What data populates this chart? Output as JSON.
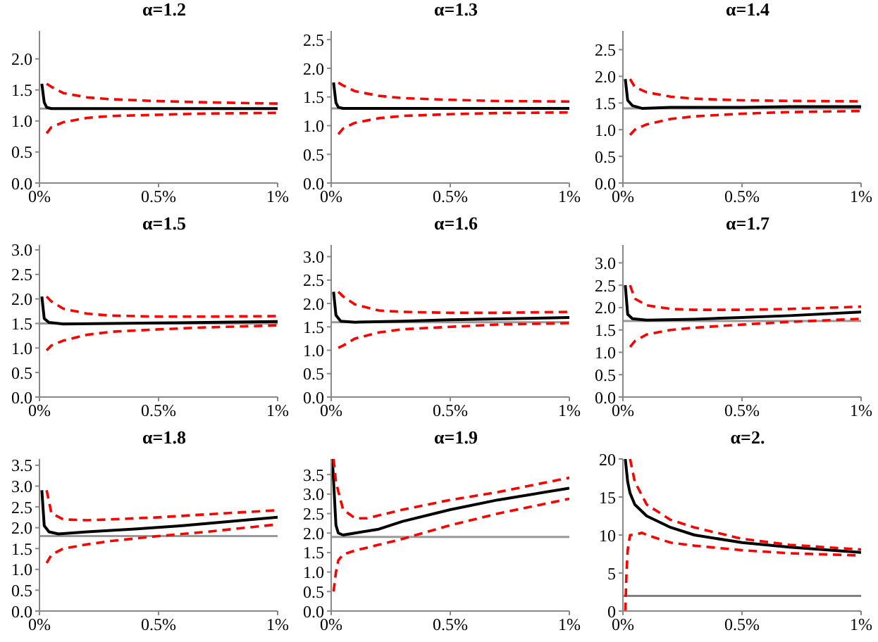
{
  "chart_data": [
    {
      "type": "line",
      "title": "α=1.2",
      "xlim": [
        0,
        1
      ],
      "xticks": [
        {
          "value": 0,
          "label": "0%"
        },
        {
          "value": 0.5,
          "label": "0.5%"
        },
        {
          "value": 1,
          "label": "1%"
        }
      ],
      "ylim": [
        0,
        2.45
      ],
      "yticks": [
        {
          "value": 0,
          "label": "0.0"
        },
        {
          "value": 0.5,
          "label": "0.5"
        },
        {
          "value": 1,
          "label": "1.0"
        },
        {
          "value": 1.5,
          "label": "1.5"
        },
        {
          "value": 2,
          "label": "2.0"
        }
      ],
      "series": [
        {
          "color": "#000000",
          "line_style": "solid",
          "x": [
            0.01,
            0.02,
            0.03,
            0.05,
            0.1,
            0.3,
            0.5,
            0.7,
            1
          ],
          "values": [
            1.6,
            1.3,
            1.22,
            1.2,
            1.2,
            1.2,
            1.2,
            1.2,
            1.2
          ]
        },
        {
          "color": "#ff0000",
          "line_style": "dashed",
          "x": [
            0.03,
            0.05,
            0.1,
            0.2,
            0.3,
            0.5,
            0.7,
            1
          ],
          "values": [
            1.6,
            1.55,
            1.45,
            1.38,
            1.35,
            1.32,
            1.3,
            1.28
          ]
        },
        {
          "color": "#ff0000",
          "line_style": "dashed",
          "x": [
            0.03,
            0.05,
            0.1,
            0.2,
            0.3,
            0.5,
            0.7,
            1
          ],
          "values": [
            0.8,
            0.9,
            0.98,
            1.05,
            1.08,
            1.1,
            1.12,
            1.13
          ]
        }
      ],
      "ref_lines": [
        {
          "axis": "y",
          "value": 1.2,
          "color": "#999999"
        }
      ]
    },
    {
      "type": "line",
      "title": "α=1.3",
      "xlim": [
        0,
        1
      ],
      "xticks": [
        {
          "value": 0,
          "label": "0%"
        },
        {
          "value": 0.5,
          "label": "0.5%"
        },
        {
          "value": 1,
          "label": "1%"
        }
      ],
      "ylim": [
        0,
        2.65
      ],
      "yticks": [
        {
          "value": 0,
          "label": "0.0"
        },
        {
          "value": 0.5,
          "label": "0.5"
        },
        {
          "value": 1,
          "label": "1.0"
        },
        {
          "value": 1.5,
          "label": "1.5"
        },
        {
          "value": 2,
          "label": "2.0"
        },
        {
          "value": 2.5,
          "label": "2.5"
        }
      ],
      "series": [
        {
          "color": "#000000",
          "line_style": "solid",
          "x": [
            0.01,
            0.02,
            0.03,
            0.05,
            0.1,
            0.3,
            0.5,
            0.7,
            1
          ],
          "values": [
            1.75,
            1.4,
            1.32,
            1.3,
            1.3,
            1.3,
            1.3,
            1.3,
            1.3
          ]
        },
        {
          "color": "#ff0000",
          "line_style": "dashed",
          "x": [
            0.03,
            0.05,
            0.1,
            0.2,
            0.3,
            0.5,
            0.7,
            1
          ],
          "values": [
            1.75,
            1.7,
            1.6,
            1.52,
            1.48,
            1.45,
            1.43,
            1.42
          ]
        },
        {
          "color": "#ff0000",
          "line_style": "dashed",
          "x": [
            0.03,
            0.05,
            0.1,
            0.2,
            0.3,
            0.5,
            0.7,
            1
          ],
          "values": [
            0.85,
            0.95,
            1.05,
            1.13,
            1.17,
            1.2,
            1.22,
            1.23
          ]
        }
      ],
      "ref_lines": [
        {
          "axis": "y",
          "value": 1.3,
          "color": "#999999"
        }
      ]
    },
    {
      "type": "line",
      "title": "α=1.4",
      "xlim": [
        0,
        1
      ],
      "xticks": [
        {
          "value": 0,
          "label": "0%"
        },
        {
          "value": 0.5,
          "label": "0.5%"
        },
        {
          "value": 1,
          "label": "1%"
        }
      ],
      "ylim": [
        0,
        2.85
      ],
      "yticks": [
        {
          "value": 0,
          "label": "0.0"
        },
        {
          "value": 0.5,
          "label": "0.5"
        },
        {
          "value": 1,
          "label": "1.0"
        },
        {
          "value": 1.5,
          "label": "1.5"
        },
        {
          "value": 2,
          "label": "2.0"
        },
        {
          "value": 2.5,
          "label": "2.5"
        }
      ],
      "series": [
        {
          "color": "#000000",
          "line_style": "solid",
          "x": [
            0.01,
            0.02,
            0.04,
            0.08,
            0.2,
            0.5,
            0.7,
            1
          ],
          "values": [
            1.95,
            1.55,
            1.45,
            1.4,
            1.42,
            1.42,
            1.43,
            1.43
          ]
        },
        {
          "color": "#ff0000",
          "line_style": "dashed",
          "x": [
            0.03,
            0.05,
            0.1,
            0.2,
            0.3,
            0.5,
            0.7,
            1
          ],
          "values": [
            1.95,
            1.8,
            1.7,
            1.62,
            1.58,
            1.55,
            1.54,
            1.53
          ]
        },
        {
          "color": "#ff0000",
          "line_style": "dashed",
          "x": [
            0.03,
            0.05,
            0.1,
            0.2,
            0.3,
            0.5,
            0.7,
            1
          ],
          "values": [
            0.9,
            1.0,
            1.1,
            1.2,
            1.25,
            1.3,
            1.33,
            1.35
          ]
        }
      ],
      "ref_lines": [
        {
          "axis": "y",
          "value": 1.4,
          "color": "#999999"
        }
      ]
    },
    {
      "type": "line",
      "title": "α=1.5",
      "xlim": [
        0,
        1
      ],
      "xticks": [
        {
          "value": 0,
          "label": "0%"
        },
        {
          "value": 0.5,
          "label": "0.5%"
        },
        {
          "value": 1,
          "label": "1%"
        }
      ],
      "ylim": [
        0,
        3.1
      ],
      "yticks": [
        {
          "value": 0,
          "label": "0.0"
        },
        {
          "value": 0.5,
          "label": "0.5"
        },
        {
          "value": 1,
          "label": "1.0"
        },
        {
          "value": 1.5,
          "label": "1.5"
        },
        {
          "value": 2,
          "label": "2.0"
        },
        {
          "value": 2.5,
          "label": "2.5"
        },
        {
          "value": 3,
          "label": "3.0"
        }
      ],
      "series": [
        {
          "color": "#000000",
          "line_style": "solid",
          "x": [
            0.01,
            0.02,
            0.04,
            0.1,
            0.3,
            0.5,
            0.7,
            1
          ],
          "values": [
            2.05,
            1.6,
            1.52,
            1.49,
            1.5,
            1.51,
            1.52,
            1.54
          ]
        },
        {
          "color": "#ff0000",
          "line_style": "dashed",
          "x": [
            0.03,
            0.05,
            0.1,
            0.2,
            0.3,
            0.5,
            0.7,
            1
          ],
          "values": [
            2.05,
            1.95,
            1.8,
            1.7,
            1.66,
            1.64,
            1.64,
            1.65
          ]
        },
        {
          "color": "#ff0000",
          "line_style": "dashed",
          "x": [
            0.03,
            0.05,
            0.1,
            0.2,
            0.3,
            0.5,
            0.7,
            1
          ],
          "values": [
            0.95,
            1.05,
            1.15,
            1.27,
            1.33,
            1.38,
            1.42,
            1.46
          ]
        }
      ],
      "ref_lines": [
        {
          "axis": "y",
          "value": 1.5,
          "color": "#999999"
        }
      ]
    },
    {
      "type": "line",
      "title": "α=1.6",
      "xlim": [
        0,
        1
      ],
      "xticks": [
        {
          "value": 0,
          "label": "0%"
        },
        {
          "value": 0.5,
          "label": "0.5%"
        },
        {
          "value": 1,
          "label": "1%"
        }
      ],
      "ylim": [
        0,
        3.25
      ],
      "yticks": [
        {
          "value": 0,
          "label": "0.0"
        },
        {
          "value": 0.5,
          "label": "0.5"
        },
        {
          "value": 1,
          "label": "1.0"
        },
        {
          "value": 1.5,
          "label": "1.5"
        },
        {
          "value": 2,
          "label": "2.0"
        },
        {
          "value": 2.5,
          "label": "2.5"
        },
        {
          "value": 3,
          "label": "3.0"
        }
      ],
      "series": [
        {
          "color": "#000000",
          "line_style": "solid",
          "x": [
            0.01,
            0.02,
            0.04,
            0.1,
            0.3,
            0.5,
            0.7,
            1
          ],
          "values": [
            2.25,
            1.75,
            1.62,
            1.6,
            1.62,
            1.65,
            1.67,
            1.7
          ]
        },
        {
          "color": "#ff0000",
          "line_style": "dashed",
          "x": [
            0.03,
            0.05,
            0.1,
            0.2,
            0.3,
            0.5,
            0.7,
            1
          ],
          "values": [
            2.25,
            2.15,
            1.98,
            1.85,
            1.82,
            1.8,
            1.8,
            1.82
          ]
        },
        {
          "color": "#ff0000",
          "line_style": "dashed",
          "x": [
            0.03,
            0.05,
            0.1,
            0.2,
            0.3,
            0.5,
            0.7,
            1
          ],
          "values": [
            1.05,
            1.1,
            1.25,
            1.38,
            1.45,
            1.5,
            1.55,
            1.58
          ]
        }
      ],
      "ref_lines": [
        {
          "axis": "y",
          "value": 1.6,
          "color": "#999999"
        }
      ]
    },
    {
      "type": "line",
      "title": "α=1.7",
      "xlim": [
        0,
        1
      ],
      "xticks": [
        {
          "value": 0,
          "label": "0%"
        },
        {
          "value": 0.5,
          "label": "0.5%"
        },
        {
          "value": 1,
          "label": "1%"
        }
      ],
      "ylim": [
        0,
        3.4
      ],
      "yticks": [
        {
          "value": 0,
          "label": "0.0"
        },
        {
          "value": 0.5,
          "label": "0.5"
        },
        {
          "value": 1,
          "label": "1.0"
        },
        {
          "value": 1.5,
          "label": "1.5"
        },
        {
          "value": 2,
          "label": "2.0"
        },
        {
          "value": 2.5,
          "label": "2.5"
        },
        {
          "value": 3,
          "label": "3.0"
        }
      ],
      "series": [
        {
          "color": "#000000",
          "line_style": "solid",
          "x": [
            0.01,
            0.02,
            0.04,
            0.1,
            0.3,
            0.5,
            0.7,
            1
          ],
          "values": [
            2.5,
            1.85,
            1.75,
            1.72,
            1.74,
            1.78,
            1.82,
            1.9
          ]
        },
        {
          "color": "#ff0000",
          "line_style": "dashed",
          "x": [
            0.03,
            0.05,
            0.1,
            0.2,
            0.3,
            0.5,
            0.7,
            1
          ],
          "values": [
            2.5,
            2.2,
            2.05,
            1.97,
            1.95,
            1.95,
            1.97,
            2.02
          ]
        },
        {
          "color": "#ff0000",
          "line_style": "dashed",
          "x": [
            0.03,
            0.05,
            0.1,
            0.2,
            0.3,
            0.5,
            0.7,
            1
          ],
          "values": [
            1.12,
            1.25,
            1.4,
            1.5,
            1.55,
            1.62,
            1.68,
            1.75
          ]
        }
      ],
      "ref_lines": [
        {
          "axis": "y",
          "value": 1.7,
          "color": "#999999"
        }
      ]
    },
    {
      "type": "line",
      "title": "α=1.8",
      "xlim": [
        0,
        1
      ],
      "xticks": [
        {
          "value": 0,
          "label": "0%"
        },
        {
          "value": 0.5,
          "label": "0.5%"
        },
        {
          "value": 1,
          "label": "1%"
        }
      ],
      "ylim": [
        0,
        3.65
      ],
      "yticks": [
        {
          "value": 0,
          "label": "0.0"
        },
        {
          "value": 0.5,
          "label": "0.5"
        },
        {
          "value": 1,
          "label": "1.0"
        },
        {
          "value": 1.5,
          "label": "1.5"
        },
        {
          "value": 2,
          "label": "2.0"
        },
        {
          "value": 2.5,
          "label": "2.5"
        },
        {
          "value": 3,
          "label": "3.0"
        },
        {
          "value": 3.5,
          "label": "3.5"
        }
      ],
      "series": [
        {
          "color": "#000000",
          "line_style": "solid",
          "x": [
            0.01,
            0.02,
            0.04,
            0.08,
            0.2,
            0.4,
            0.6,
            0.8,
            1
          ],
          "values": [
            2.9,
            2.05,
            1.9,
            1.85,
            1.9,
            1.97,
            2.05,
            2.15,
            2.25
          ]
        },
        {
          "color": "#ff0000",
          "line_style": "dashed",
          "x": [
            0.03,
            0.05,
            0.1,
            0.2,
            0.3,
            0.5,
            0.7,
            1
          ],
          "values": [
            2.9,
            2.35,
            2.2,
            2.18,
            2.2,
            2.25,
            2.32,
            2.42
          ]
        },
        {
          "color": "#ff0000",
          "line_style": "dashed",
          "x": [
            0.03,
            0.05,
            0.1,
            0.2,
            0.3,
            0.5,
            0.7,
            1
          ],
          "values": [
            1.15,
            1.35,
            1.5,
            1.6,
            1.68,
            1.8,
            1.9,
            2.08
          ]
        }
      ],
      "ref_lines": [
        {
          "axis": "y",
          "value": 1.8,
          "color": "#999999"
        }
      ]
    },
    {
      "type": "line",
      "title": "α=1.9",
      "xlim": [
        0,
        1
      ],
      "xticks": [
        {
          "value": 0,
          "label": "0%"
        },
        {
          "value": 0.5,
          "label": "0.5%"
        },
        {
          "value": 1,
          "label": "1%"
        }
      ],
      "ylim": [
        0,
        3.9
      ],
      "yticks": [
        {
          "value": 0,
          "label": "0.0"
        },
        {
          "value": 0.5,
          "label": "0.5"
        },
        {
          "value": 1,
          "label": "1.0"
        },
        {
          "value": 1.5,
          "label": "1.5"
        },
        {
          "value": 2,
          "label": "2.0"
        },
        {
          "value": 2.5,
          "label": "2.5"
        },
        {
          "value": 3,
          "label": "3.0"
        },
        {
          "value": 3.5,
          "label": "3.5"
        }
      ],
      "series": [
        {
          "color": "#000000",
          "line_style": "solid",
          "x": [
            0.005,
            0.02,
            0.03,
            0.05,
            0.1,
            0.2,
            0.3,
            0.5,
            0.7,
            1
          ],
          "values": [
            3.9,
            2.2,
            2.0,
            1.95,
            2.0,
            2.1,
            2.3,
            2.6,
            2.85,
            3.15
          ]
        },
        {
          "color": "#ff0000",
          "line_style": "dashed",
          "x": [
            0.01,
            0.02,
            0.05,
            0.1,
            0.15,
            0.3,
            0.5,
            0.7,
            1
          ],
          "values": [
            3.9,
            3.3,
            2.6,
            2.38,
            2.38,
            2.6,
            2.85,
            3.05,
            3.42
          ]
        },
        {
          "color": "#ff0000",
          "line_style": "dashed",
          "x": [
            0.01,
            0.02,
            0.03,
            0.05,
            0.1,
            0.2,
            0.3,
            0.5,
            0.7,
            1
          ],
          "values": [
            0.5,
            1.0,
            1.3,
            1.45,
            1.55,
            1.7,
            1.85,
            2.2,
            2.5,
            2.88
          ]
        }
      ],
      "ref_lines": [
        {
          "axis": "y",
          "value": 1.9,
          "color": "#999999"
        }
      ]
    },
    {
      "type": "line",
      "title": "α=2.",
      "xlim": [
        0,
        1
      ],
      "xticks": [
        {
          "value": 0,
          "label": "0%"
        },
        {
          "value": 0.5,
          "label": "0.5%"
        },
        {
          "value": 1,
          "label": "1%"
        }
      ],
      "ylim": [
        0,
        20
      ],
      "yticks": [
        0,
        5,
        10,
        15,
        20
      ],
      "series": [
        {
          "color": "#000000",
          "line_style": "solid",
          "x": [
            0.01,
            0.02,
            0.03,
            0.05,
            0.1,
            0.2,
            0.3,
            0.5,
            0.7,
            1
          ],
          "values": [
            20,
            17,
            15.5,
            14,
            12.5,
            11,
            10,
            9,
            8.4,
            7.7
          ]
        },
        {
          "color": "#ff0000",
          "line_style": "dashed",
          "x": [
            0.03,
            0.05,
            0.1,
            0.15,
            0.2,
            0.3,
            0.5,
            0.7,
            1
          ],
          "values": [
            20,
            17,
            14,
            13,
            12,
            11,
            9.5,
            8.7,
            8.1
          ]
        },
        {
          "color": "#ff0000",
          "line_style": "dashed",
          "x": [
            0.01,
            0.015,
            0.02,
            0.03,
            0.05,
            0.08,
            0.1,
            0.2,
            0.3,
            0.5,
            0.7,
            1
          ],
          "values": [
            0,
            5,
            8,
            10,
            10,
            10.3,
            10,
            9,
            8.6,
            8,
            7.6,
            7.3
          ]
        }
      ],
      "ref_lines": [
        {
          "axis": "y",
          "value": 2,
          "color": "#808080"
        }
      ]
    }
  ]
}
